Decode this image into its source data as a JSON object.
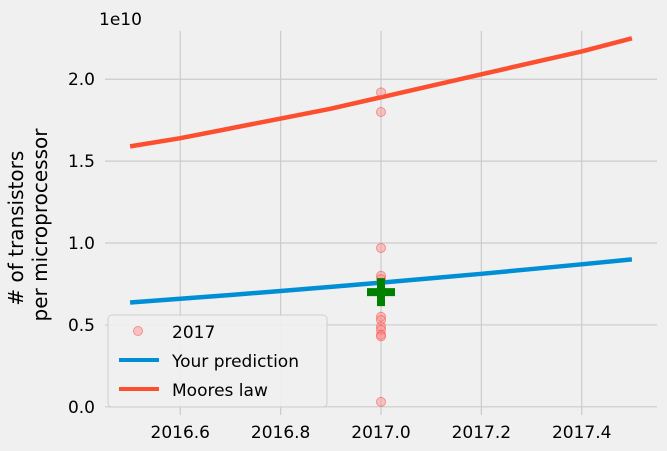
{
  "chart_data": {
    "type": "scatter",
    "ylabel_line1": "# of transistors",
    "ylabel_line2": "per microprocessor",
    "y_offset_label": "1e10",
    "xlim": [
      2016.45,
      2017.55
    ],
    "ylim": [
      -500000000.0,
      23800000000.0
    ],
    "x_ticks": [
      2016.6,
      2016.8,
      2017.0,
      2017.2,
      2017.4
    ],
    "x_tick_labels": [
      "2016.6",
      "2016.8",
      "2017.0",
      "2017.2",
      "2017.4"
    ],
    "y_ticks": [
      0,
      5000000000.0,
      10000000000.0,
      15000000000.0,
      20000000000.0
    ],
    "y_tick_labels": [
      "0.0",
      "0.5",
      "1.0",
      "1.5",
      "2.0"
    ],
    "grid": true,
    "legend_position": "lower-left",
    "series": [
      {
        "name": "2017",
        "kind": "points",
        "color": "#ff8080",
        "x": [
          2017.0,
          2017.0,
          2017.0,
          2017.0,
          2017.0,
          2017.0,
          2017.0,
          2017.0,
          2017.0,
          2017.0,
          2017.0,
          2017.0,
          2017.0,
          2017.0
        ],
        "y": [
          19200000000.0,
          18000000000.0,
          9700000000.0,
          8000000000.0,
          7800000000.0,
          7100000000.0,
          6900000000.0,
          5500000000.0,
          5300000000.0,
          4900000000.0,
          4700000000.0,
          4400000000.0,
          4300000000.0,
          300000000.0
        ]
      },
      {
        "name": "Your prediction",
        "kind": "line",
        "color": "#008fd5",
        "x": [
          2016.5,
          2016.6,
          2016.7,
          2016.8,
          2016.9,
          2017.0,
          2017.1,
          2017.2,
          2017.3,
          2017.4,
          2017.5
        ],
        "y": [
          6370000000.0,
          6600000000.0,
          6830000000.0,
          7070000000.0,
          7320000000.0,
          7580000000.0,
          7850000000.0,
          8120000000.0,
          8410000000.0,
          8700000000.0,
          9000000000.0
        ]
      },
      {
        "name": "Moores law",
        "kind": "line",
        "color": "#fc4f30",
        "x": [
          2016.5,
          2016.6,
          2016.7,
          2016.8,
          2016.9,
          2017.0,
          2017.1,
          2017.2,
          2017.3,
          2017.4,
          2017.5
        ],
        "y": [
          15900000000.0,
          16400000000.0,
          17000000000.0,
          17600000000.0,
          18200000000.0,
          18900000000.0,
          19600000000.0,
          20300000000.0,
          21000000000.0,
          21700000000.0,
          22500000000.0
        ]
      },
      {
        "name": "",
        "kind": "marker",
        "color": "#008000",
        "x": [
          2017.0
        ],
        "y": [
          7000000000.0
        ]
      }
    ]
  }
}
